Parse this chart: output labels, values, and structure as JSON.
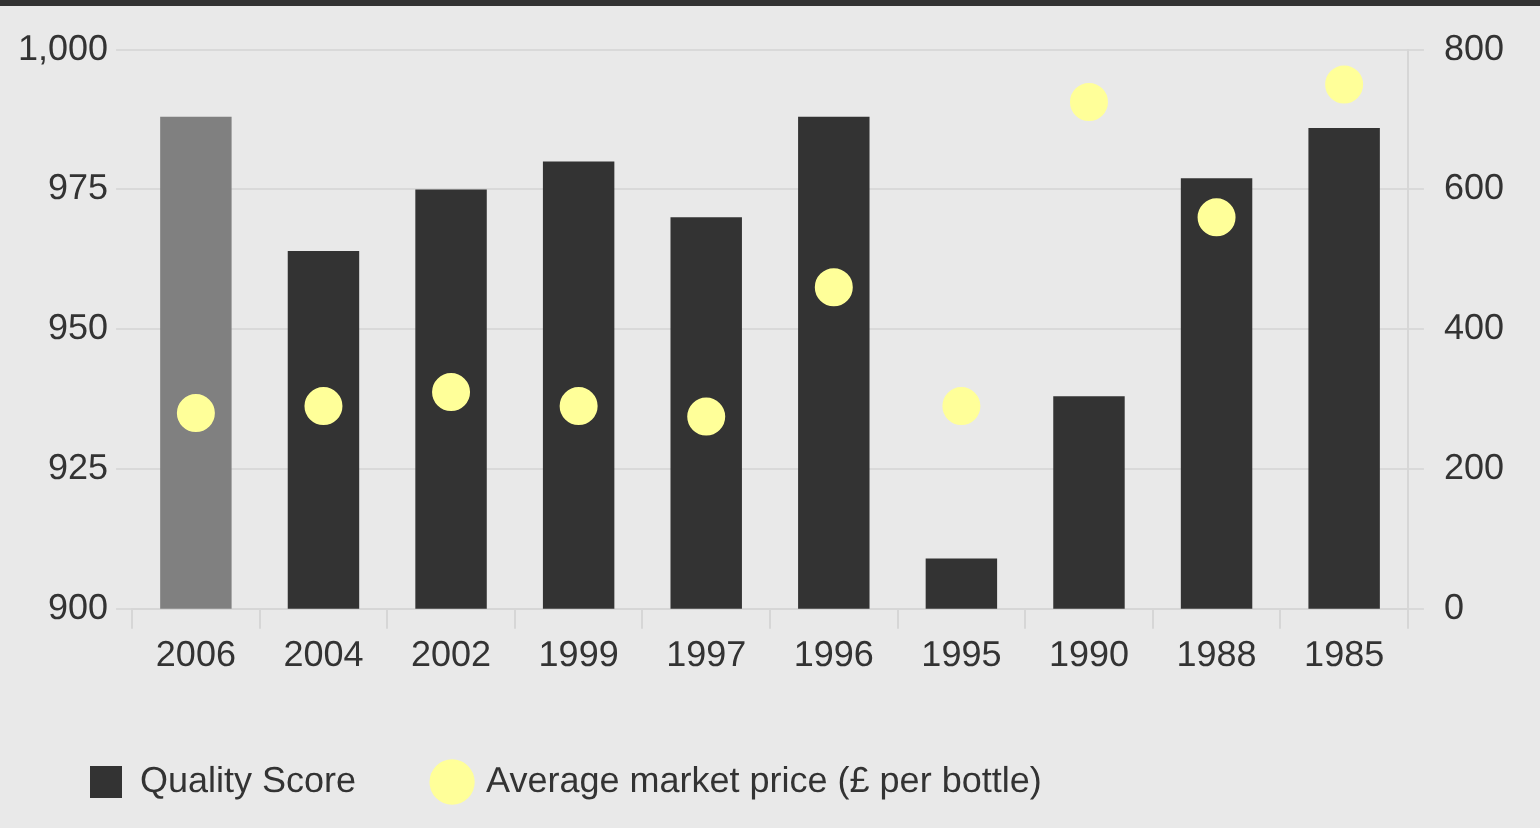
{
  "chart_data": {
    "type": "bar",
    "categories": [
      "2006",
      "2004",
      "2002",
      "1999",
      "1997",
      "1996",
      "1995",
      "1990",
      "1988",
      "1985"
    ],
    "series": [
      {
        "name": "Quality Score",
        "color": "#333333",
        "colors": [
          "#808080",
          "#333333",
          "#333333",
          "#333333",
          "#333333",
          "#333333",
          "#333333",
          "#333333",
          "#333333",
          "#333333"
        ],
        "values": [
          988,
          964,
          975,
          980,
          970,
          988,
          909,
          938,
          977,
          986
        ]
      },
      {
        "name": "Average market price (£ per bottle)",
        "type": "scatter",
        "axis": "y2",
        "color": "#ffff99",
        "values": [
          280,
          290,
          310,
          290,
          275,
          460,
          290,
          725,
          560,
          750
        ]
      }
    ],
    "ylim": [
      900,
      1000
    ],
    "yticks": [
      900,
      925,
      950,
      975,
      {
        "value": 1000,
        "label": "1,000"
      }
    ],
    "y2lim": [
      0,
      800
    ],
    "y2ticks": [
      0,
      200,
      400,
      600,
      800
    ],
    "grid": "y",
    "legend": "bottom left",
    "marker": "circle"
  }
}
